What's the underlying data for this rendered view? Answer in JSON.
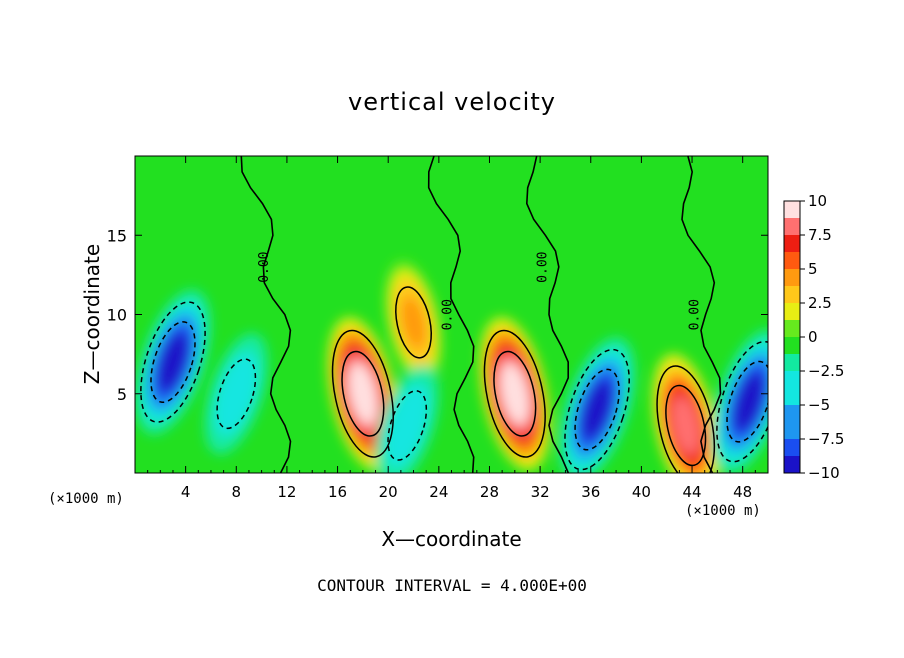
{
  "chart_data": {
    "type": "heatmap",
    "title": "vertical velocity",
    "xlabel": "X—coordinate",
    "ylabel": "Z—coordinate",
    "x_unit": "(×1000 m)",
    "footer": "CONTOUR INTERVAL = 4.000E+00",
    "xlim": [
      0,
      50
    ],
    "ylim": [
      0,
      20
    ],
    "x_ticks": [
      "4",
      "8",
      "12",
      "16",
      "20",
      "24",
      "28",
      "32",
      "36",
      "40",
      "44",
      "48"
    ],
    "y_ticks": [
      "5",
      "10",
      "15"
    ],
    "colorbar": {
      "range": [
        -10,
        10
      ],
      "labels": [
        "10",
        "7.5",
        "5",
        "2.5",
        "0",
        "−2.5",
        "−5",
        "−7.5",
        "−10"
      ]
    },
    "contour_label": "0.00",
    "features": [
      {
        "x": 18,
        "z": 5,
        "value": 10
      },
      {
        "x": 30,
        "z": 5,
        "value": 10
      },
      {
        "x": 43.5,
        "z": 3,
        "value": 8
      },
      {
        "x": 22,
        "z": 9.5,
        "value": 4
      },
      {
        "x": 3,
        "z": 7,
        "value": -9
      },
      {
        "x": 36.5,
        "z": 4,
        "value": -9
      },
      {
        "x": 48.5,
        "z": 4.5,
        "value": -9
      },
      {
        "x": 8,
        "z": 5,
        "value": -4
      },
      {
        "x": 21.5,
        "z": 3,
        "value": -4
      }
    ]
  }
}
